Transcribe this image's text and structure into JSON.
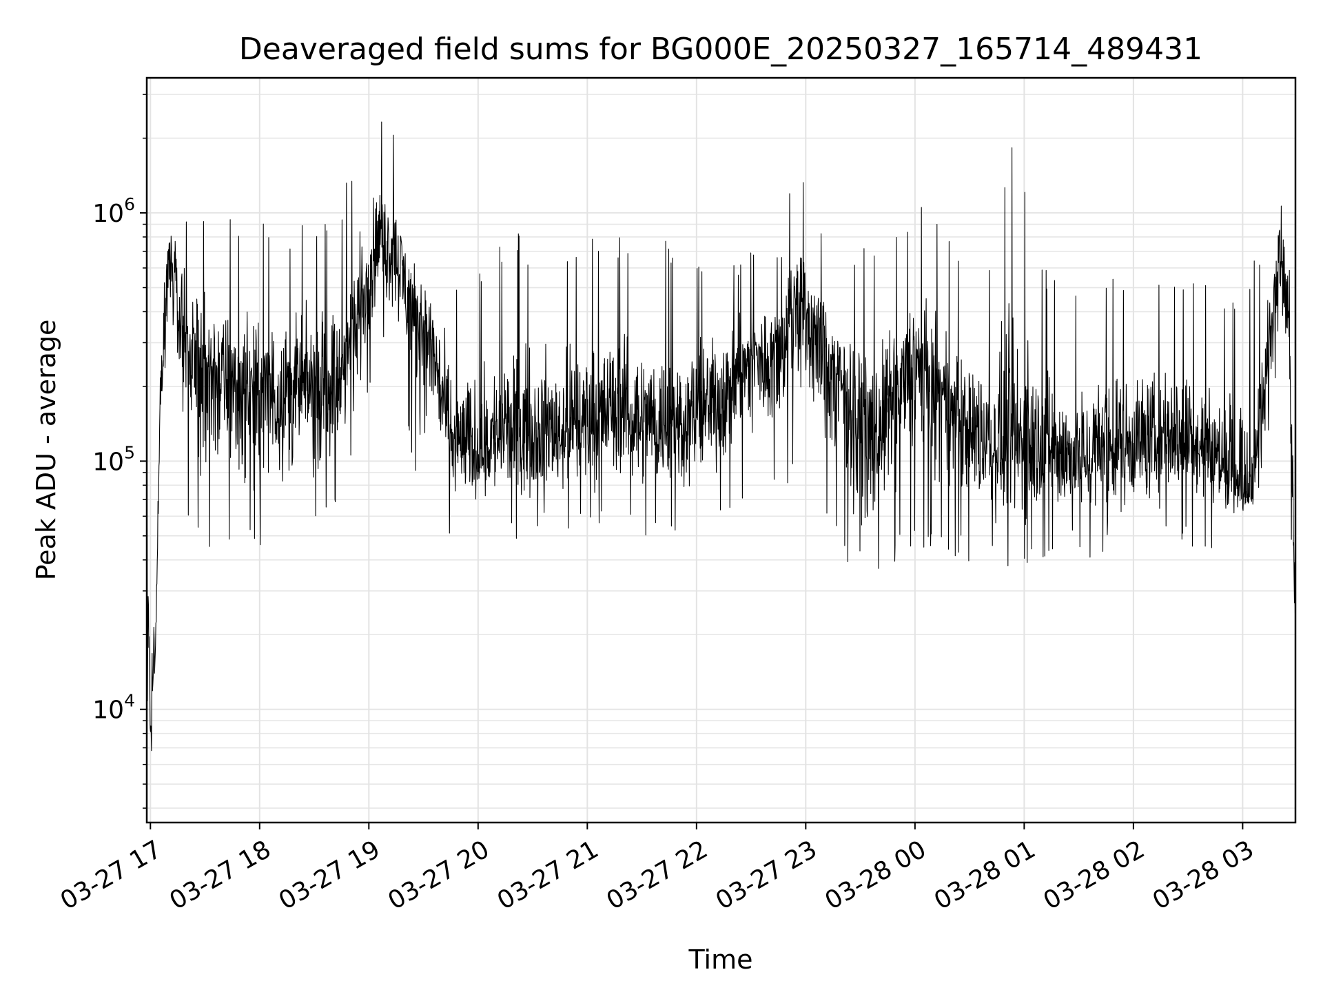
{
  "chart_data": {
    "type": "line",
    "title": "Deaveraged field sums for BG000E_20250327_165714_489431",
    "xlabel": "Time",
    "ylabel": "Peak ADU - average",
    "yscale": "log",
    "ylim": [
      3500,
      3500000
    ],
    "xlim": [
      "03-27 16:58",
      "03-28 03:29"
    ],
    "grid": true,
    "line_color": "#000000",
    "x_ticks": [
      "03-27 17",
      "03-27 18",
      "03-27 19",
      "03-27 20",
      "03-27 21",
      "03-27 22",
      "03-27 23",
      "03-28 00",
      "03-28 01",
      "03-28 02",
      "03-28 03"
    ],
    "y_ticks": [
      {
        "value": 10000,
        "base": "10",
        "exp": "4"
      },
      {
        "value": 100000,
        "base": "10",
        "exp": "5"
      },
      {
        "value": 1000000,
        "base": "10",
        "exp": "6"
      }
    ],
    "x": [
      "03-27 16:58",
      "03-27 17:00",
      "03-27 17:03",
      "03-27 17:05",
      "03-27 17:10",
      "03-27 17:20",
      "03-27 17:30",
      "03-27 17:45",
      "03-27 18:00",
      "03-27 18:15",
      "03-27 18:30",
      "03-27 18:45",
      "03-27 18:55",
      "03-27 19:05",
      "03-27 19:15",
      "03-27 19:25",
      "03-27 19:35",
      "03-27 19:45",
      "03-27 20:00",
      "03-27 20:15",
      "03-27 20:30",
      "03-27 20:45",
      "03-27 21:00",
      "03-27 21:15",
      "03-27 21:30",
      "03-27 21:45",
      "03-27 22:00",
      "03-27 22:15",
      "03-27 22:30",
      "03-27 22:45",
      "03-27 22:55",
      "03-27 23:05",
      "03-27 23:20",
      "03-27 23:35",
      "03-27 23:50",
      "03-28 00:00",
      "03-28 00:10",
      "03-28 00:25",
      "03-28 00:40",
      "03-28 00:55",
      "03-28 01:10",
      "03-28 01:25",
      "03-28 01:40",
      "03-28 01:55",
      "03-28 02:10",
      "03-28 02:25",
      "03-28 02:40",
      "03-28 02:55",
      "03-28 03:05",
      "03-28 03:15",
      "03-28 03:20",
      "03-28 03:25",
      "03-28 03:29"
    ],
    "y_mid": [
      60000,
      9000,
      20000,
      150000,
      700000,
      300000,
      250000,
      200000,
      180000,
      200000,
      200000,
      220000,
      400000,
      800000,
      700000,
      400000,
      300000,
      120000,
      110000,
      130000,
      130000,
      130000,
      150000,
      160000,
      150000,
      140000,
      150000,
      200000,
      250000,
      300000,
      450000,
      350000,
      200000,
      120000,
      180000,
      250000,
      200000,
      140000,
      120000,
      110000,
      120000,
      100000,
      110000,
      120000,
      120000,
      130000,
      110000,
      90000,
      70000,
      300000,
      800000,
      400000,
      30000
    ],
    "y_min": [
      10000,
      5500,
      12000,
      80000,
      300000,
      60000,
      40000,
      45000,
      42000,
      45000,
      48000,
      60000,
      120000,
      300000,
      250000,
      90000,
      60000,
      50000,
      48000,
      45000,
      50000,
      50000,
      50000,
      52000,
      50000,
      48000,
      50000,
      55000,
      60000,
      70000,
      90000,
      60000,
      40000,
      32000,
      40000,
      45000,
      45000,
      40000,
      38000,
      36000,
      38000,
      36000,
      40000,
      42000,
      45000,
      45000,
      40000,
      50000,
      55000,
      80000,
      400000,
      120000,
      12000
    ],
    "y_max": [
      80000,
      30000,
      60000,
      600000,
      1500000,
      1200000,
      1200000,
      1000000,
      1100000,
      900000,
      1000000,
      1100000,
      2200000,
      2500000,
      2000000,
      1200000,
      900000,
      600000,
      600000,
      850000,
      800000,
      800000,
      800000,
      850000,
      800000,
      800000,
      750000,
      650000,
      700000,
      700000,
      2300000,
      900000,
      700000,
      800000,
      1000000,
      1100000,
      1000000,
      700000,
      700000,
      2500000,
      600000,
      600000,
      600000,
      600000,
      600000,
      550000,
      550000,
      500000,
      600000,
      1000000,
      2600000,
      900000,
      80000
    ]
  }
}
